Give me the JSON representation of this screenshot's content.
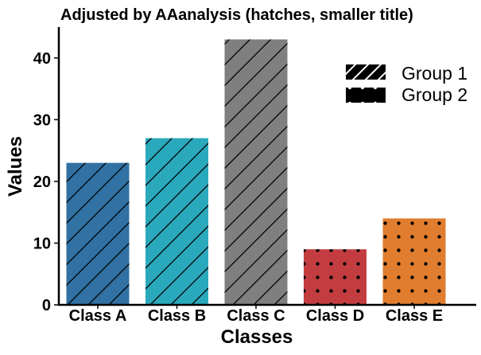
{
  "chart_data": {
    "type": "bar",
    "title": "Adjusted by AAanalysis (hatches, smaller title)",
    "xlabel": "Classes",
    "ylabel": "Values",
    "categories": [
      "Class A",
      "Class B",
      "Class C",
      "Class D",
      "Class E"
    ],
    "values": [
      23,
      27,
      43,
      9,
      14
    ],
    "bar_colors": [
      "#3171a3",
      "#2ba9bc",
      "#7f7f7f",
      "#c33d40",
      "#e07d2f"
    ],
    "bar_groups": [
      "Group 1",
      "Group 1",
      "Group 1",
      "Group 2",
      "Group 2"
    ],
    "ylim": [
      0,
      45
    ],
    "yticks": [
      0,
      10,
      20,
      30,
      40
    ],
    "grid": false,
    "legend": {
      "placement": "top-right",
      "entries": [
        {
          "label": "Group 1",
          "hatch": "diagonal"
        },
        {
          "label": "Group 2",
          "hatch": "dots"
        }
      ]
    }
  }
}
